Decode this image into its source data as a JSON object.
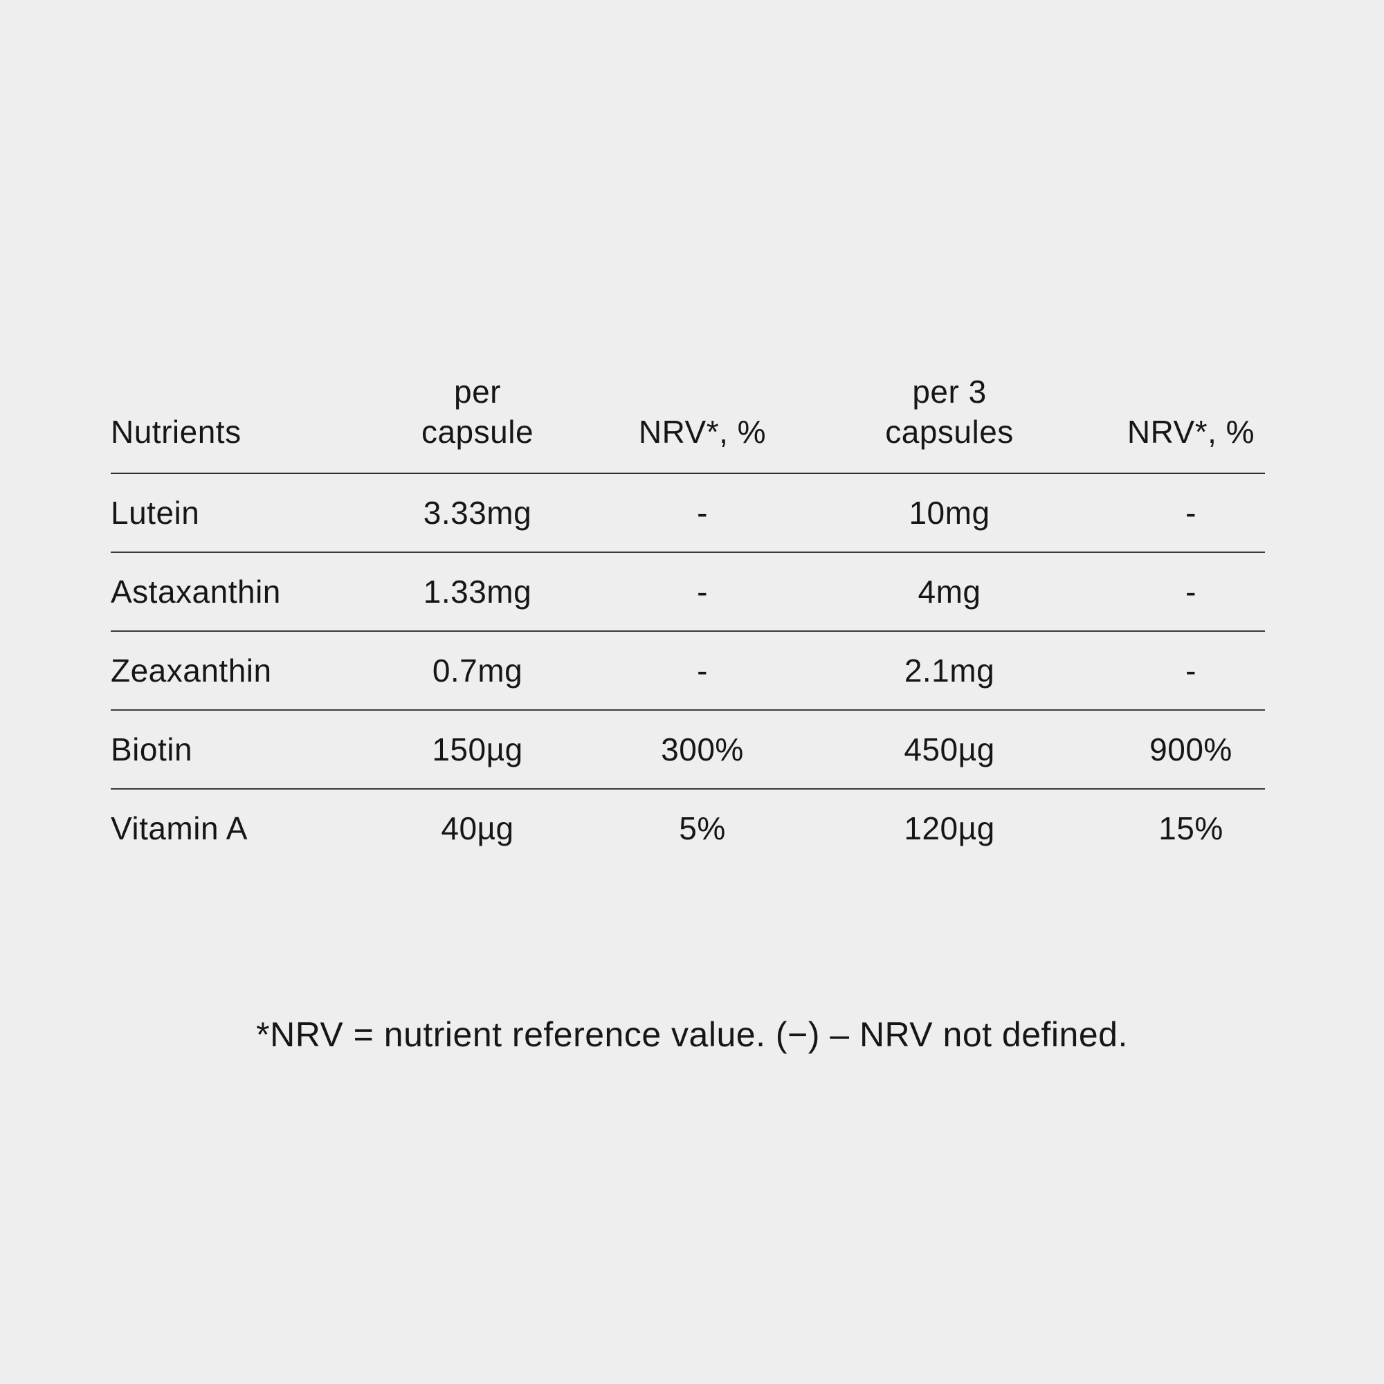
{
  "page": {
    "background_color": "#eeeeee",
    "text_color": "#161616",
    "line_color": "#2e2e2e"
  },
  "table": {
    "columns": [
      {
        "label": "Nutrients"
      },
      {
        "label": "per\ncapsule"
      },
      {
        "label": "NRV*, %"
      },
      {
        "label": "per 3\ncapsules"
      },
      {
        "label": "NRV*, %"
      }
    ],
    "rows": [
      [
        "Lutein",
        "3.33mg",
        "-",
        "10mg",
        "-"
      ],
      [
        "Astaxanthin",
        "1.33mg",
        "-",
        "4mg",
        "-"
      ],
      [
        "Zeaxanthin",
        "0.7mg",
        "-",
        "2.1mg",
        "-"
      ],
      [
        "Biotin",
        "150µg",
        "300%",
        "450µg",
        "900%"
      ],
      [
        "Vitamin A",
        "40µg",
        "5%",
        "120µg",
        "15%"
      ]
    ]
  },
  "footnote": "*NRV = nutrient reference value. (−) – NRV not defined."
}
